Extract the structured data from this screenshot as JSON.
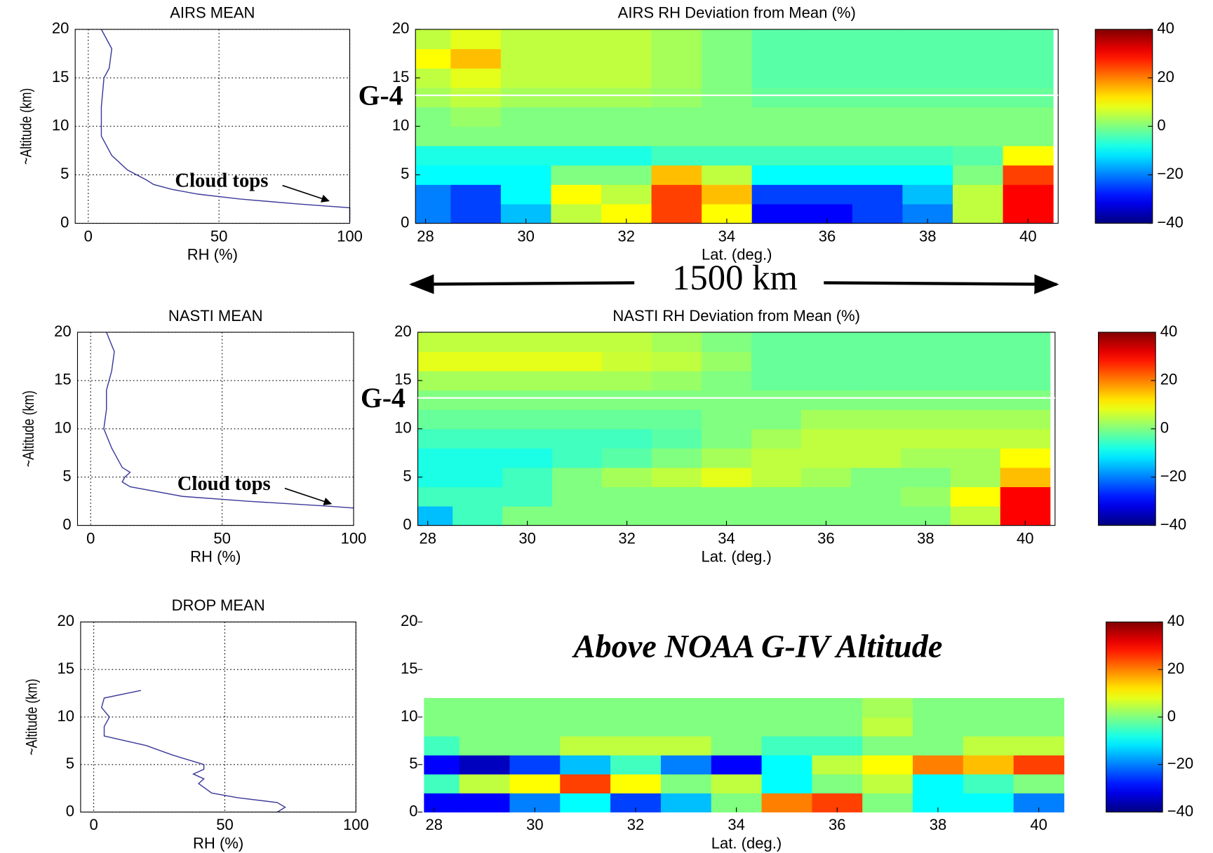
{
  "annotation": "1500 km",
  "chart_data": [
    {
      "type": "line",
      "title": "AIRS MEAN",
      "xlabel": "RH (%)",
      "ylabel": "~Altitude (km)",
      "annotation": "Cloud tops",
      "color": "#3a3a9a",
      "x": [
        5,
        9,
        8,
        6,
        5,
        5,
        9,
        15,
        22,
        25,
        32,
        42,
        58,
        80,
        100,
        100
      ],
      "values": [
        20,
        18,
        16,
        15,
        12,
        9,
        7,
        5.5,
        4.5,
        4,
        3.5,
        3,
        2.5,
        2,
        1.6,
        0.2
      ],
      "xlim": [
        -5,
        100
      ],
      "ylim": [
        0,
        20
      ],
      "xticks": [
        0,
        50,
        100
      ],
      "yticks": [
        0,
        5,
        10,
        15,
        20
      ],
      "grid": true
    },
    {
      "type": "heatmap",
      "title": "AIRS RH Deviation from Mean (%)",
      "xlabel": "Lat. (deg.)",
      "g4_line": 13.2,
      "g4_label": "G-4",
      "x": [
        28,
        29,
        30,
        31,
        32,
        33,
        34,
        35,
        36,
        37,
        38,
        39,
        40
      ],
      "y": [
        1,
        3,
        5,
        7,
        9,
        11,
        13,
        15,
        17,
        19
      ],
      "z": [
        [
          -20,
          -25,
          -15,
          5,
          10,
          25,
          10,
          -30,
          -30,
          -25,
          -20,
          5,
          30
        ],
        [
          -20,
          -25,
          -10,
          10,
          5,
          25,
          15,
          -25,
          -25,
          -25,
          -15,
          5,
          30
        ],
        [
          -10,
          -10,
          -10,
          0,
          0,
          15,
          5,
          -10,
          -10,
          -10,
          -10,
          0,
          25
        ],
        [
          -8,
          -8,
          -8,
          -8,
          -8,
          -5,
          -5,
          -5,
          -5,
          -5,
          -5,
          -3,
          10
        ],
        [
          0,
          0,
          0,
          0,
          0,
          0,
          0,
          0,
          0,
          0,
          0,
          0,
          0
        ],
        [
          0,
          2,
          0,
          0,
          0,
          0,
          0,
          0,
          0,
          0,
          0,
          0,
          0
        ],
        [
          3,
          5,
          3,
          3,
          3,
          2,
          0,
          -2,
          -2,
          -2,
          -2,
          -2,
          -2
        ],
        [
          5,
          8,
          5,
          5,
          5,
          3,
          0,
          -3,
          -3,
          -3,
          -3,
          -3,
          -3
        ],
        [
          10,
          15,
          5,
          5,
          5,
          3,
          0,
          -3,
          -3,
          -3,
          -3,
          -3,
          -3
        ],
        [
          5,
          8,
          5,
          5,
          5,
          3,
          0,
          -3,
          -3,
          -3,
          -3,
          -3,
          -3
        ]
      ],
      "xlim": [
        27.8,
        40.6
      ],
      "ylim": [
        0,
        20
      ],
      "xticks": [
        28,
        30,
        32,
        34,
        36,
        38,
        40
      ],
      "yticks": [
        0,
        5,
        10,
        15,
        20
      ],
      "clim": [
        -40,
        40
      ],
      "cticks": [
        {
          "value": -40,
          "label": "−40"
        },
        {
          "value": -20,
          "label": "−20"
        },
        0,
        20,
        40
      ],
      "colormap": "jet"
    },
    {
      "type": "line",
      "title": "NASTI MEAN",
      "xlabel": "RH (%)",
      "ylabel": "~Altitude (km)",
      "annotation": "Cloud tops",
      "color": "#3a3a9a",
      "x": [
        6,
        9,
        8,
        6,
        6,
        5,
        8,
        12,
        15,
        13,
        12,
        15,
        35,
        60,
        90,
        100
      ],
      "values": [
        20,
        18,
        16,
        14,
        12,
        10,
        8,
        6,
        5.5,
        5,
        4.5,
        4,
        3,
        2.5,
        2,
        1.8
      ],
      "xlim": [
        -5,
        100
      ],
      "ylim": [
        0,
        20
      ],
      "xticks": [
        0,
        50,
        100
      ],
      "yticks": [
        0,
        5,
        10,
        15,
        20
      ],
      "grid": true
    },
    {
      "type": "heatmap",
      "title": "NASTI RH Deviation from Mean (%)",
      "xlabel": "Lat. (deg.)",
      "g4_line": 13.2,
      "g4_label": "G-4",
      "x": [
        28,
        29,
        30,
        31,
        32,
        33,
        34,
        35,
        36,
        37,
        38,
        39,
        40
      ],
      "y": [
        1,
        3,
        5,
        7,
        9,
        11,
        13,
        15,
        17,
        19
      ],
      "z": [
        [
          -15,
          -5,
          0,
          0,
          0,
          0,
          0,
          0,
          0,
          0,
          0,
          5,
          30
        ],
        [
          -5,
          -5,
          -5,
          0,
          0,
          0,
          0,
          0,
          0,
          0,
          2,
          10,
          30
        ],
        [
          -8,
          -8,
          -5,
          0,
          3,
          5,
          8,
          5,
          3,
          0,
          0,
          3,
          15
        ],
        [
          -8,
          -8,
          -8,
          -5,
          -3,
          0,
          3,
          5,
          5,
          5,
          3,
          3,
          10
        ],
        [
          -5,
          -5,
          -5,
          -5,
          -5,
          -3,
          0,
          3,
          5,
          5,
          5,
          5,
          5
        ],
        [
          -2,
          -2,
          -2,
          -2,
          -2,
          -2,
          0,
          0,
          3,
          3,
          3,
          3,
          3
        ],
        [
          0,
          0,
          0,
          0,
          0,
          0,
          0,
          0,
          0,
          0,
          0,
          0,
          0
        ],
        [
          3,
          3,
          3,
          3,
          3,
          2,
          0,
          -2,
          -2,
          -2,
          -2,
          -2,
          -2
        ],
        [
          8,
          8,
          8,
          8,
          6,
          5,
          2,
          -2,
          -2,
          -2,
          -2,
          -2,
          -2
        ],
        [
          5,
          5,
          5,
          5,
          5,
          3,
          0,
          -2,
          -2,
          -2,
          -2,
          -2,
          -2
        ]
      ],
      "xlim": [
        27.8,
        40.6
      ],
      "ylim": [
        0,
        20
      ],
      "xticks": [
        28,
        30,
        32,
        34,
        36,
        38,
        40
      ],
      "yticks": [
        0,
        5,
        10,
        15,
        20
      ],
      "clim": [
        -40,
        40
      ],
      "cticks": [
        {
          "value": -40,
          "label": "−40"
        },
        {
          "value": -20,
          "label": "−20"
        },
        0,
        20,
        40
      ],
      "colormap": "jet"
    },
    {
      "type": "line",
      "title": "DROP MEAN",
      "xlabel": "RH (%)",
      "ylabel": "~Altitude (km)",
      "color": "#3a3a9a",
      "x": [
        18,
        4,
        3,
        6,
        4,
        4,
        20,
        30,
        42,
        42,
        38,
        42,
        40,
        45,
        55,
        70,
        73,
        70
      ],
      "values": [
        12.8,
        12,
        11,
        10,
        9,
        8,
        7,
        6,
        5,
        4.5,
        4,
        3.5,
        3,
        2,
        1.5,
        1,
        0.5,
        0
      ],
      "xlim": [
        -5,
        100
      ],
      "ylim": [
        0,
        20
      ],
      "xticks": [
        0,
        50,
        100
      ],
      "yticks": [
        0,
        5,
        10,
        15,
        20
      ],
      "grid": true
    },
    {
      "type": "heatmap",
      "xlabel": "Lat. (deg.)",
      "annotation": "Above NOAA G-IV Altitude",
      "x": [
        28,
        29,
        30,
        31,
        32,
        33,
        34,
        35,
        36,
        37,
        38,
        39,
        40
      ],
      "y": [
        1,
        3,
        5,
        7,
        9,
        11,
        13,
        15,
        17,
        19
      ],
      "z": [
        [
          -30,
          -30,
          -20,
          -10,
          -25,
          -15,
          0,
          20,
          25,
          0,
          -10,
          -10,
          -20
        ],
        [
          -5,
          5,
          10,
          25,
          10,
          0,
          5,
          -10,
          0,
          5,
          -10,
          -5,
          0
        ],
        [
          -30,
          -35,
          -25,
          -15,
          -5,
          -20,
          -30,
          -10,
          5,
          10,
          20,
          15,
          25
        ],
        [
          -5,
          0,
          0,
          5,
          5,
          5,
          0,
          -5,
          -5,
          0,
          0,
          5,
          5
        ],
        [
          0,
          0,
          0,
          0,
          0,
          0,
          0,
          0,
          0,
          5,
          0,
          0,
          0
        ],
        [
          0,
          0,
          0,
          0,
          0,
          0,
          0,
          0,
          0,
          3,
          0,
          0,
          0
        ],
        [
          null,
          null,
          null,
          null,
          null,
          null,
          null,
          null,
          null,
          null,
          null,
          null,
          null
        ],
        [
          null,
          null,
          null,
          null,
          null,
          null,
          null,
          null,
          null,
          null,
          null,
          null,
          null
        ],
        [
          null,
          null,
          null,
          null,
          null,
          null,
          null,
          null,
          null,
          null,
          null,
          null,
          null
        ],
        [
          null,
          null,
          null,
          null,
          null,
          null,
          null,
          null,
          null,
          null,
          null,
          null,
          null
        ]
      ],
      "xlim": [
        27.8,
        40.6
      ],
      "ylim": [
        0,
        20
      ],
      "xticks": [
        28,
        30,
        32,
        34,
        36,
        38,
        40
      ],
      "yticks": [
        0,
        5,
        10,
        15,
        20
      ],
      "clim": [
        -40,
        40
      ],
      "cticks": [
        {
          "value": -40,
          "label": "−40"
        },
        {
          "value": -20,
          "label": "−20"
        },
        0,
        20,
        40
      ],
      "colormap": "jet",
      "frame": false
    }
  ]
}
